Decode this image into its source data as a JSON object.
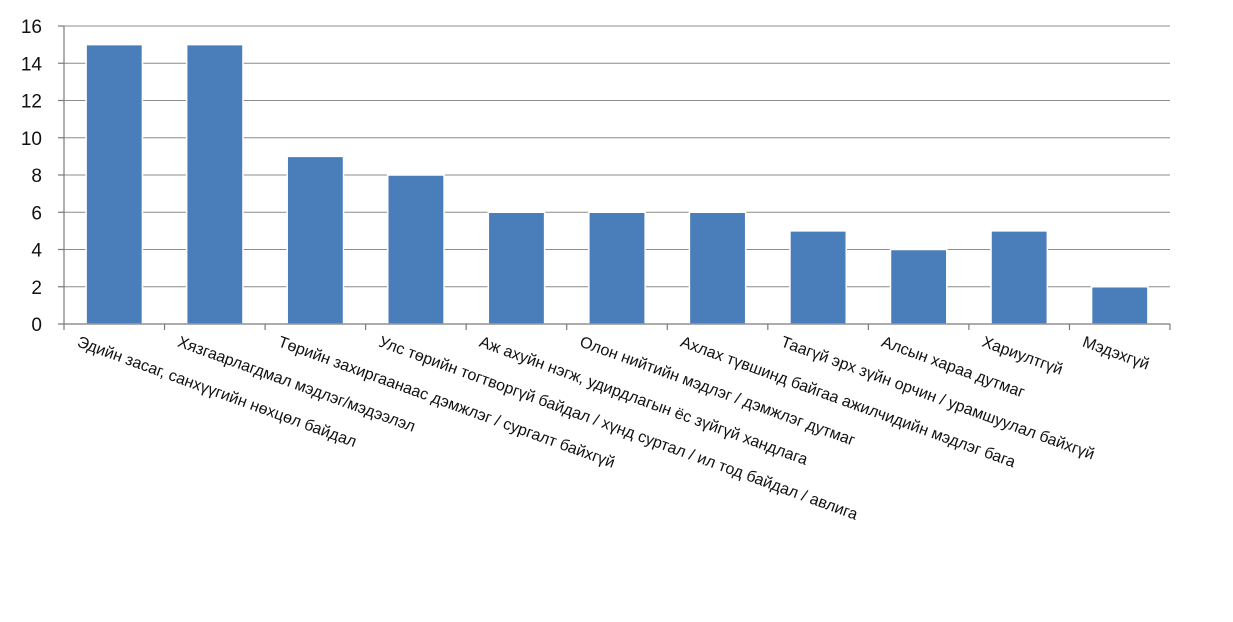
{
  "chart_data": {
    "type": "bar",
    "title": "",
    "xlabel": "",
    "ylabel": "",
    "ylim": [
      0,
      16
    ],
    "yticks": [
      0,
      2,
      4,
      6,
      8,
      10,
      12,
      14,
      16
    ],
    "grid": true,
    "legend": "none",
    "bar_color": "#4a7ebb",
    "categories": [
      "Эдийн засаг, санхүүгийн нөхцөл байдал",
      "Хязгаарлагдмал мэдлэг/мэдээлэл",
      "Төрийн захиргаанаас дэмжлэг / сургалт байхгүй",
      "Улс төрийн тогтворгүй байдал / хүнд суртал / ил тод байдал / авлига",
      "Аж ахуйн нэгж, удирдлагын ёс зүйгүй хандлага",
      "Олон нийтийн мэдлэг / дэмжлэг дутмаг",
      "Ахлах түвшинд байгаа ажилчидийн мэдлэг бага",
      "Таагүй эрх зүйн орчин / урамшуулал байхгүй",
      "Алсын хараа дутмаг",
      "Хариултгүй",
      "Мэдэхгүй"
    ],
    "values": [
      15,
      15,
      9,
      8,
      6,
      6,
      6,
      5,
      4,
      5,
      2
    ]
  }
}
